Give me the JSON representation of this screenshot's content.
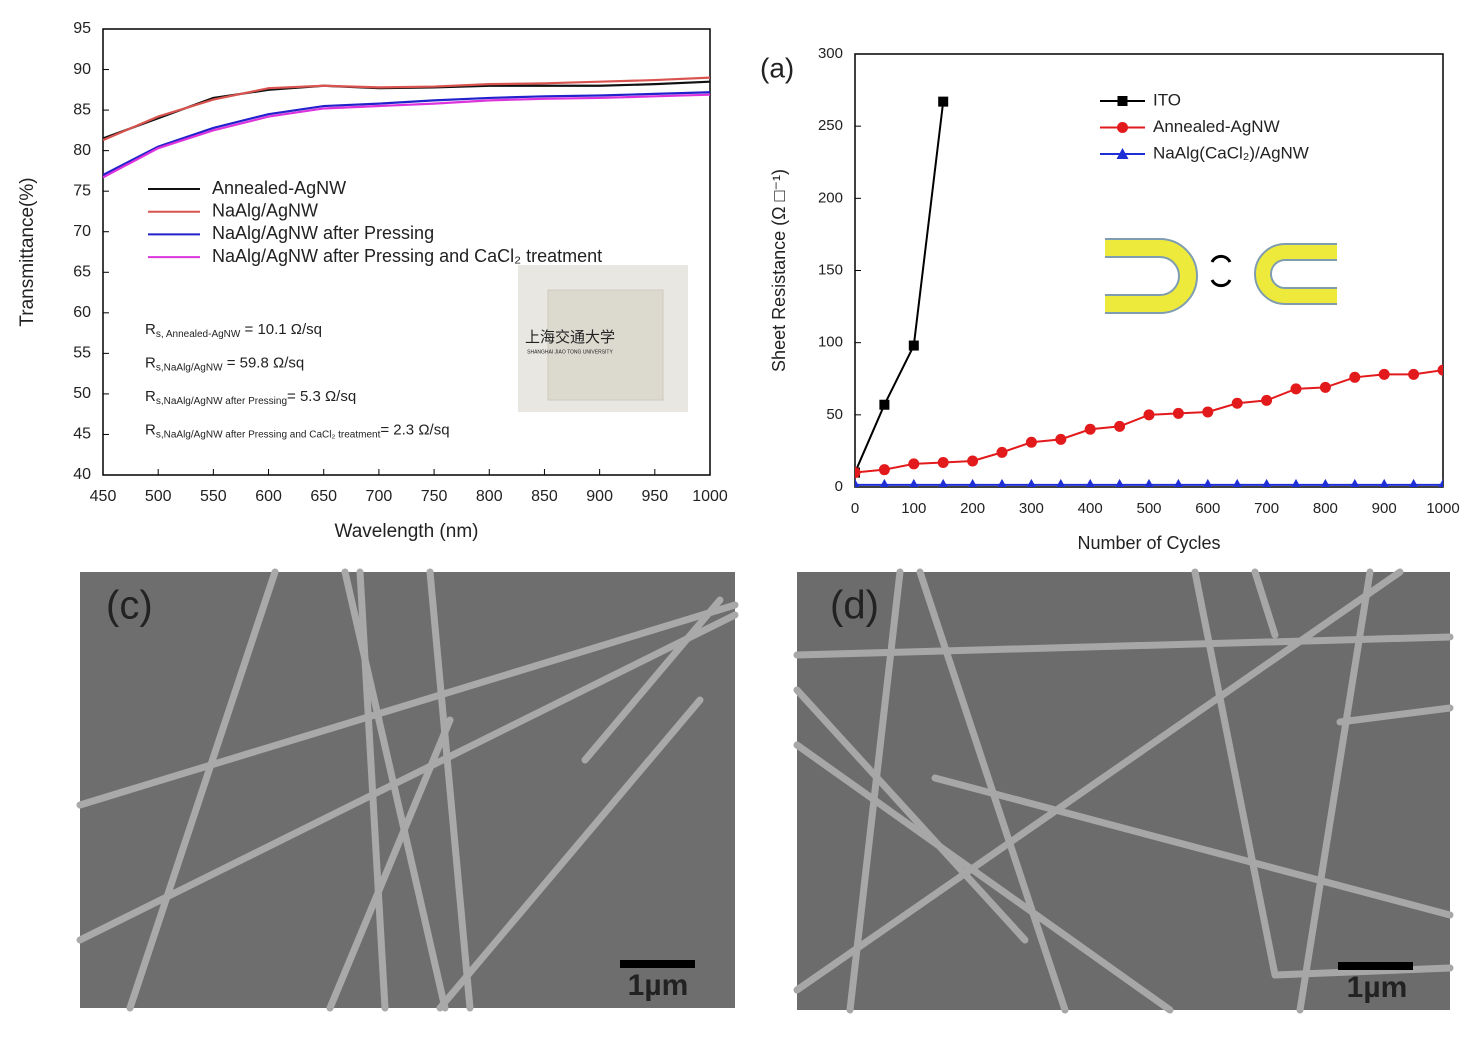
{
  "chart_data": [
    {
      "type": "line",
      "x_label": "Wavelength (nm)",
      "y_label": "Transmittance(%)",
      "x": [
        450,
        500,
        550,
        600,
        650,
        700,
        750,
        800,
        850,
        900,
        950,
        1000
      ],
      "xlim": [
        450,
        1000
      ],
      "xticks": [
        450,
        500,
        550,
        600,
        650,
        700,
        750,
        800,
        850,
        900,
        950,
        1000
      ],
      "ylim": [
        40,
        95
      ],
      "yticks": [
        40,
        45,
        50,
        55,
        60,
        65,
        70,
        75,
        80,
        85,
        90,
        95
      ],
      "series": [
        {
          "name": "Annealed-AgNW",
          "color": "#111111",
          "values": [
            81.5,
            84,
            86.5,
            87.5,
            88,
            87.7,
            87.8,
            88,
            88,
            88,
            88.2,
            88.5
          ]
        },
        {
          "name": "NaAlg/AgNW",
          "color": "#d9534f",
          "values": [
            81.3,
            84.2,
            86.3,
            87.7,
            88,
            87.8,
            87.9,
            88.2,
            88.3,
            88.5,
            88.7,
            89
          ]
        },
        {
          "name": "NaAlg/AgNW after Pressing",
          "color": "#2222cc",
          "values": [
            77,
            80.5,
            82.8,
            84.5,
            85.5,
            85.8,
            86.2,
            86.5,
            86.7,
            86.8,
            87,
            87.2
          ]
        },
        {
          "name": "NaAlg/AgNW after Pressing and CaCl₂ treatment",
          "color": "#dd33dd",
          "values": [
            76.7,
            80.3,
            82.5,
            84.2,
            85.2,
            85.5,
            85.8,
            86.2,
            86.4,
            86.5,
            86.7,
            86.9
          ]
        }
      ],
      "annotations": [
        {
          "symbol": "R",
          "subscript": "s, Annealed-AgNW",
          "text": " = 10.1 Ω/sq"
        },
        {
          "symbol": "R",
          "subscript": "s,NaAlg/AgNW",
          "text": " = 59.8 Ω/sq"
        },
        {
          "symbol": "R",
          "subscript": "s,NaAlg/AgNW after Pressing",
          "text": "= 5.3 Ω/sq"
        },
        {
          "symbol": "R",
          "subscript": "s,NaAlg/AgNW after Pressing and CaCl₂ treatment",
          "text": "= 2.3 Ω/sq"
        }
      ],
      "inset": {
        "text": "上海交通大学",
        "subtext": "SHANGHAI JIAO TONG UNIVERSITY"
      }
    },
    {
      "type": "line",
      "panel_label": "(a)",
      "x_label": "Number of Cycles",
      "y_label": "Sheet Resistance (Ω □⁻¹)",
      "xlim": [
        0,
        1000
      ],
      "xticks": [
        0,
        100,
        200,
        300,
        400,
        500,
        600,
        700,
        800,
        900,
        1000
      ],
      "ylim": [
        0,
        300
      ],
      "yticks": [
        0,
        50,
        100,
        150,
        200,
        250,
        300
      ],
      "series": [
        {
          "name": "ITO",
          "color": "#000000",
          "marker": "square",
          "x": [
            0,
            50,
            100,
            150
          ],
          "values": [
            10,
            57,
            98,
            267
          ]
        },
        {
          "name": "Annealed-AgNW",
          "color": "#e31a1c",
          "marker": "circle",
          "x": [
            0,
            50,
            100,
            150,
            200,
            250,
            300,
            350,
            400,
            450,
            500,
            550,
            600,
            650,
            700,
            750,
            800,
            850,
            900,
            950,
            1000
          ],
          "values": [
            10,
            12,
            16,
            17,
            18,
            24,
            31,
            33,
            40,
            42,
            50,
            51,
            52,
            58,
            60,
            68,
            69,
            76,
            78,
            78,
            81
          ]
        },
        {
          "name": "NaAlg(CaCl₂)/AgNW",
          "color": "#1f2fd6",
          "marker": "triangle",
          "x": [
            0,
            50,
            100,
            150,
            200,
            250,
            300,
            350,
            400,
            450,
            500,
            550,
            600,
            650,
            700,
            750,
            800,
            850,
            900,
            950,
            1000
          ],
          "values": [
            1.5,
            1.5,
            1.5,
            1.5,
            1.5,
            1.5,
            1.5,
            1.5,
            1.5,
            1.5,
            1.5,
            1.5,
            1.5,
            1.5,
            1.5,
            1.5,
            1.5,
            1.5,
            1.5,
            1.5,
            1.5
          ]
        }
      ]
    }
  ],
  "images": [
    {
      "label": "(c)",
      "scale_bar": "1µm"
    },
    {
      "label": "(d)",
      "scale_bar": "1µm"
    }
  ]
}
